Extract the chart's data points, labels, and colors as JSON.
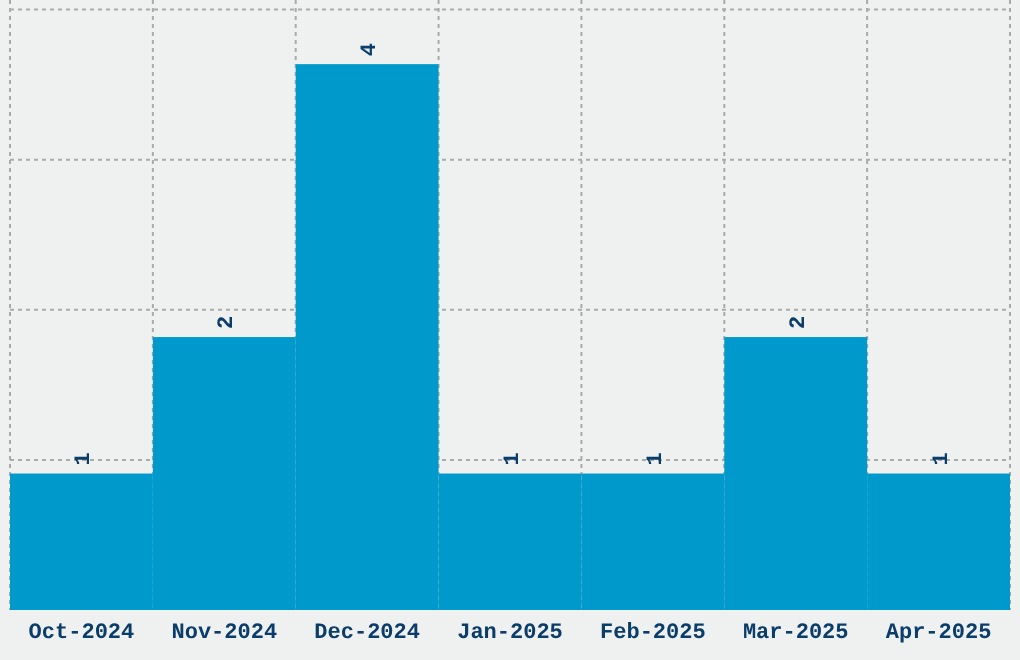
{
  "chart_data": {
    "type": "bar",
    "categories": [
      "Oct-2024",
      "Nov-2024",
      "Dec-2024",
      "Jan-2025",
      "Feb-2025",
      "Mar-2025",
      "Apr-2025"
    ],
    "values": [
      1,
      2,
      4,
      1,
      1,
      2,
      1
    ],
    "color": "#0099cc",
    "data_labels": true,
    "grid": true,
    "ylim": [
      0,
      4.47
    ],
    "yticks": [
      {
        "value": 1.1,
        "label": null
      },
      {
        "value": 2.2,
        "label": null
      },
      {
        "value": 3.3,
        "label": null
      },
      {
        "value": 4.4,
        "label": null
      }
    ],
    "tick_labels": "x"
  }
}
